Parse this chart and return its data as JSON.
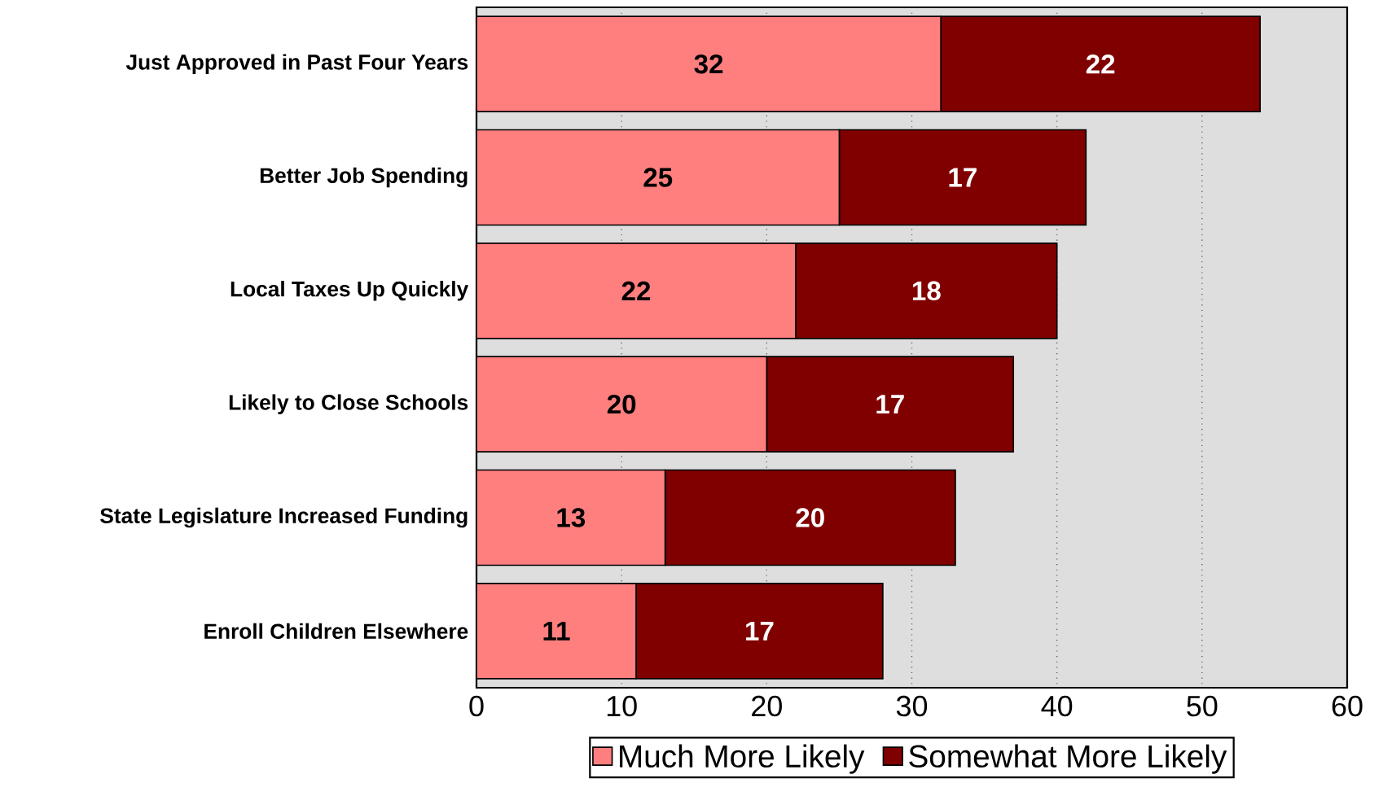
{
  "chart_data": {
    "type": "bar",
    "orientation": "horizontal",
    "stacked": true,
    "categories": [
      "Just Approved in Past Four Years",
      "Better Job Spending",
      "Local Taxes Up Quickly",
      "Likely to Close Schools",
      "State Legislature Increased Funding",
      "Enroll Children Elsewhere"
    ],
    "series": [
      {
        "name": "Much More Likely",
        "color": "#ff7f7f",
        "values": [
          32,
          25,
          22,
          20,
          13,
          11
        ]
      },
      {
        "name": "Somewhat More Likely",
        "color": "#800000",
        "values": [
          22,
          17,
          18,
          17,
          20,
          17
        ]
      }
    ],
    "xlim": [
      0,
      60
    ],
    "xticks": [
      0,
      10,
      20,
      30,
      40,
      50,
      60
    ],
    "grid": "x",
    "legend": "bottom",
    "data_labels": true
  }
}
